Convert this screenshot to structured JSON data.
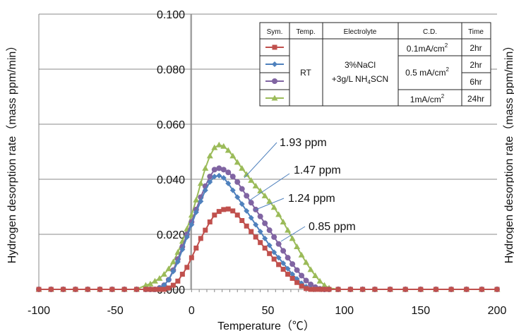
{
  "chart_data": {
    "type": "line",
    "xlabel": "Temperature（℃）",
    "ylabel": "Hydrogen desorption rate（mass ppm/min）",
    "ylabel_right": "Hydrogen desorption rate（mass ppm/min）",
    "xlim": [
      -100,
      200
    ],
    "ylim": [
      0,
      0.1
    ],
    "x_ticks": [
      "-100",
      "-50",
      "0",
      "50",
      "100",
      "150",
      "200"
    ],
    "y_ticks": [
      "0.000",
      "0.020",
      "0.040",
      "0.060",
      "0.080",
      "0.100"
    ],
    "grid": "horizontal",
    "legend_placement": "top-right",
    "colors": {
      "red": "#c0504d",
      "blue": "#4f81bd",
      "purple": "#8064a2",
      "green": "#9bbb59"
    },
    "series": [
      {
        "color": "#c0504d",
        "marker": "square",
        "x": [
          -100,
          -92,
          -84,
          -76,
          -68,
          -60,
          -52,
          -44,
          -36,
          -30,
          -27,
          -24,
          -21,
          -18,
          -15,
          -12,
          -9,
          -6,
          -3,
          0,
          3,
          6,
          9,
          12,
          15,
          18,
          21,
          24,
          27,
          30,
          33,
          36,
          39,
          42,
          45,
          48,
          51,
          54,
          57,
          60,
          63,
          66,
          69,
          72,
          75,
          78,
          81,
          84,
          87,
          90,
          96,
          104,
          112,
          120,
          130,
          140,
          150,
          160,
          170,
          180,
          190,
          200
        ],
        "values": [
          0,
          0,
          0,
          0,
          0,
          0,
          0,
          0,
          0,
          0,
          0,
          0,
          0,
          0,
          0.0005,
          0.0015,
          0.003,
          0.0055,
          0.008,
          0.0115,
          0.015,
          0.0185,
          0.0215,
          0.0245,
          0.027,
          0.0283,
          0.029,
          0.0292,
          0.0285,
          0.027,
          0.025,
          0.023,
          0.021,
          0.019,
          0.017,
          0.015,
          0.013,
          0.011,
          0.009,
          0.0073,
          0.0055,
          0.004,
          0.0025,
          0.0012,
          0.0003,
          0,
          0,
          0,
          0,
          0,
          0,
          0,
          0,
          0,
          0,
          0,
          0,
          0,
          0,
          0,
          0,
          0
        ]
      },
      {
        "color": "#4f81bd",
        "marker": "diamond",
        "x": [
          -100,
          -92,
          -84,
          -76,
          -68,
          -60,
          -52,
          -44,
          -36,
          -30,
          -27,
          -24,
          -21,
          -18,
          -15,
          -12,
          -9,
          -6,
          -3,
          0,
          3,
          6,
          9,
          12,
          15,
          18,
          21,
          24,
          27,
          30,
          33,
          36,
          39,
          42,
          45,
          48,
          51,
          54,
          57,
          60,
          63,
          66,
          69,
          72,
          75,
          78,
          81,
          84,
          87,
          90,
          96,
          104,
          112,
          120,
          130,
          140,
          150,
          160,
          170,
          180,
          190,
          200
        ],
        "values": [
          0,
          0,
          0,
          0,
          0,
          0,
          0,
          0,
          0,
          0,
          0,
          0,
          0.0005,
          0.0015,
          0.0035,
          0.0065,
          0.01,
          0.0145,
          0.019,
          0.0235,
          0.028,
          0.032,
          0.036,
          0.039,
          0.041,
          0.0413,
          0.0405,
          0.0385,
          0.036,
          0.0335,
          0.031,
          0.0285,
          0.026,
          0.0235,
          0.021,
          0.0185,
          0.016,
          0.0135,
          0.0115,
          0.0095,
          0.0075,
          0.0055,
          0.0038,
          0.0022,
          0.001,
          0.0003,
          0,
          0,
          0,
          0,
          0,
          0,
          0,
          0,
          0,
          0,
          0,
          0,
          0,
          0,
          0,
          0
        ]
      },
      {
        "color": "#8064a2",
        "marker": "circle",
        "x": [
          -100,
          -92,
          -84,
          -76,
          -68,
          -60,
          -52,
          -44,
          -36,
          -30,
          -27,
          -24,
          -21,
          -18,
          -15,
          -12,
          -9,
          -6,
          -3,
          0,
          3,
          6,
          9,
          12,
          15,
          18,
          21,
          24,
          27,
          30,
          33,
          36,
          39,
          42,
          45,
          48,
          51,
          54,
          57,
          60,
          63,
          66,
          69,
          72,
          75,
          78,
          81,
          84,
          87,
          90,
          96,
          104,
          112,
          120,
          130,
          140,
          150,
          160,
          170,
          180,
          190,
          200
        ],
        "values": [
          0,
          0,
          0,
          0,
          0,
          0,
          0,
          0,
          0,
          0,
          0,
          0,
          0.0005,
          0.0015,
          0.0035,
          0.007,
          0.011,
          0.0155,
          0.02,
          0.0245,
          0.029,
          0.0335,
          0.0375,
          0.041,
          0.0435,
          0.044,
          0.0435,
          0.0425,
          0.041,
          0.039,
          0.0365,
          0.034,
          0.0315,
          0.029,
          0.0265,
          0.024,
          0.0215,
          0.019,
          0.0165,
          0.014,
          0.0115,
          0.0092,
          0.007,
          0.005,
          0.0032,
          0.0018,
          0.0008,
          0.0002,
          0,
          0,
          0,
          0,
          0,
          0,
          0,
          0,
          0,
          0,
          0,
          0,
          0,
          0
        ]
      },
      {
        "color": "#9bbb59",
        "marker": "triangle",
        "x": [
          -100,
          -92,
          -84,
          -76,
          -68,
          -60,
          -52,
          -44,
          -36,
          -30,
          -27,
          -24,
          -21,
          -18,
          -15,
          -12,
          -9,
          -6,
          -3,
          0,
          3,
          6,
          9,
          12,
          15,
          18,
          21,
          24,
          27,
          30,
          33,
          36,
          39,
          42,
          45,
          48,
          51,
          54,
          57,
          60,
          63,
          66,
          69,
          72,
          75,
          78,
          81,
          84,
          87,
          90,
          96,
          104,
          112,
          120,
          130,
          140,
          150,
          160,
          170,
          180,
          190,
          200
        ],
        "values": [
          0,
          0,
          0,
          0,
          0,
          0,
          0,
          0,
          0,
          0.0015,
          0.002,
          0.003,
          0.004,
          0.0055,
          0.0075,
          0.01,
          0.0135,
          0.0175,
          0.022,
          0.027,
          0.0325,
          0.0385,
          0.044,
          0.0485,
          0.0515,
          0.0525,
          0.052,
          0.0505,
          0.0485,
          0.0462,
          0.044,
          0.0418,
          0.0396,
          0.0376,
          0.0358,
          0.034,
          0.032,
          0.0298,
          0.0272,
          0.0245,
          0.0215,
          0.0185,
          0.0155,
          0.0125,
          0.0098,
          0.0072,
          0.005,
          0.003,
          0.0015,
          0.0005,
          0,
          0,
          0,
          0,
          0,
          0,
          0,
          0,
          0,
          0,
          0,
          0
        ]
      }
    ],
    "annotations": [
      "1.93 ppm",
      "1.47 ppm",
      "1.24 ppm",
      "0.85 ppm"
    ],
    "legend_table": {
      "headers": [
        "Sym.",
        "Temp.",
        "Electrolyte",
        "C.D.",
        "Time"
      ],
      "temp": "RT",
      "electrolyte_line1": "3%NaCl",
      "electrolyte_line2": "+3g/L NH",
      "electrolyte_sub": "4",
      "electrolyte_line2_end": "SCN",
      "cd_rows": [
        {
          "text": "0.1mA/cm",
          "sup": "2"
        },
        {
          "text": "0.5 mA/cm",
          "sup": "2"
        },
        {
          "text": "1mA/cm",
          "sup": "2"
        }
      ],
      "times": [
        "2hr",
        "2hr",
        "6hr",
        "24hr"
      ]
    }
  }
}
